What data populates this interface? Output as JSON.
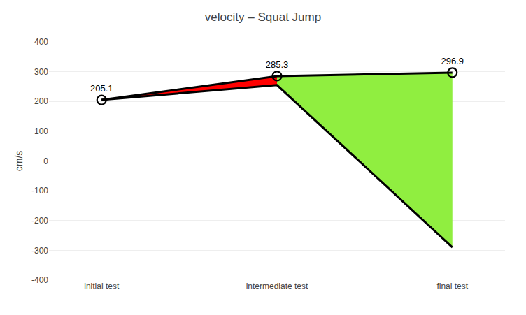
{
  "chart_data": {
    "type": "line",
    "title": "velocity – Squat Jump",
    "ylabel": "cm/s",
    "categories": [
      "initial test",
      "intermediate test",
      "final test"
    ],
    "series": [
      {
        "values": [
          205.1,
          285.3,
          296.9
        ],
        "color": "#000000",
        "marker": "circle-open",
        "data_labels": true
      },
      {
        "values": [
          205.1,
          255.0,
          -290.0
        ],
        "color": "#000000",
        "type": "area",
        "colors": [
          "#FF0000",
          "#90EE40"
        ]
      }
    ],
    "ylim": [
      -400,
      400
    ],
    "yticks": [
      -400,
      -300,
      -200,
      -100,
      0,
      100,
      200,
      300,
      400
    ],
    "grid": true
  }
}
